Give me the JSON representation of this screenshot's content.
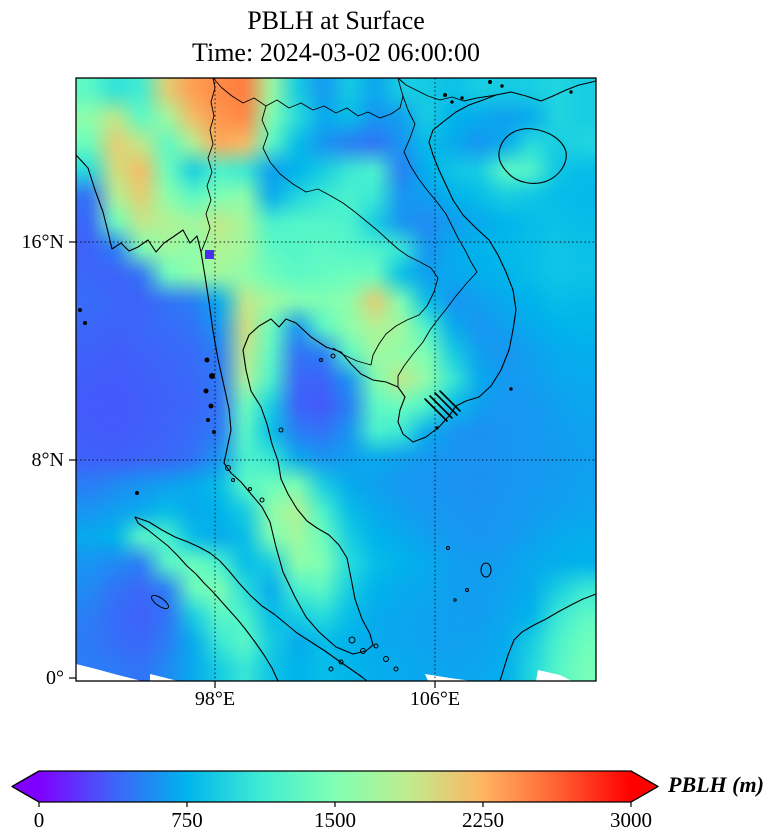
{
  "title": {
    "line1": "PBLH at Surface",
    "line2": "Time: 2024-03-02 06:00:00"
  },
  "axes": {
    "y_ticks": [
      "16°N",
      "8°N",
      "0°"
    ],
    "x_ticks": [
      "98°E",
      "106°E"
    ]
  },
  "colorbar": {
    "label": "PBLH (m)",
    "ticks": [
      "0",
      "750",
      "1500",
      "2250",
      "3000"
    ],
    "min": 0,
    "max": 3000,
    "extend": "both",
    "gradient_stops": [
      "#8000ff",
      "#4062fa",
      "#00b4ec",
      "#40ecd4",
      "#80ffb4",
      "#bfec8e",
      "#ffb462",
      "#ff6232",
      "#ff0000"
    ]
  },
  "chart_data": {
    "type": "heatmap",
    "title": "PBLH at Surface",
    "subtitle": "Time: 2024-03-02 06:00:00",
    "variable": "PBLH",
    "units": "m",
    "colormap": "rainbow",
    "value_range": [
      0,
      3000
    ],
    "lon_range": [
      93,
      112
    ],
    "lat_range": [
      22.1,
      0
    ],
    "grid_cols": 20,
    "grid_rows": 23,
    "grid": [
      [
        1300,
        1050,
        1150,
        2100,
        2350,
        2450,
        2500,
        1700,
        900,
        620,
        880,
        680,
        900,
        880,
        820,
        900,
        880,
        900,
        950,
        900
      ],
      [
        1600,
        1900,
        1300,
        1700,
        2200,
        2400,
        2450,
        1500,
        1000,
        700,
        800,
        600,
        650,
        900,
        750,
        700,
        650,
        700,
        950,
        900
      ],
      [
        1400,
        2100,
        1900,
        1300,
        1800,
        2300,
        2200,
        1300,
        800,
        600,
        500,
        450,
        600,
        800,
        700,
        600,
        700,
        1000,
        900,
        950
      ],
      [
        1000,
        2000,
        2200,
        1400,
        900,
        1200,
        1100,
        650,
        750,
        900,
        1100,
        1200,
        500,
        750,
        850,
        900,
        1300,
        1250,
        850,
        800
      ],
      [
        450,
        1800,
        2100,
        1600,
        1300,
        1500,
        1600,
        700,
        950,
        1100,
        1200,
        1100,
        600,
        650,
        750,
        800,
        900,
        850,
        800,
        780
      ],
      [
        400,
        1400,
        1900,
        1800,
        1700,
        1900,
        1700,
        1200,
        1250,
        1250,
        1200,
        900,
        600,
        550,
        650,
        700,
        750,
        800,
        820,
        800
      ],
      [
        380,
        500,
        1500,
        1700,
        1600,
        1800,
        1700,
        1300,
        1250,
        1300,
        1250,
        1200,
        1100,
        600,
        700,
        750,
        780,
        800,
        850,
        820
      ],
      [
        400,
        380,
        450,
        1400,
        1600,
        1700,
        1600,
        1400,
        1300,
        1350,
        1400,
        1400,
        800,
        650,
        700,
        720,
        760,
        800,
        850,
        830
      ],
      [
        420,
        400,
        380,
        450,
        500,
        700,
        1900,
        1700,
        1550,
        1500,
        1600,
        2100,
        1500,
        800,
        600,
        650,
        700,
        750,
        800,
        780
      ],
      [
        400,
        380,
        400,
        420,
        450,
        600,
        2000,
        1400,
        600,
        1300,
        1600,
        1800,
        1700,
        1200,
        700,
        600,
        650,
        700,
        750,
        760
      ],
      [
        380,
        360,
        380,
        400,
        420,
        500,
        1900,
        1300,
        450,
        500,
        1300,
        1700,
        1600,
        1500,
        900,
        650,
        600,
        650,
        700,
        720
      ],
      [
        360,
        350,
        370,
        390,
        410,
        480,
        1800,
        1200,
        400,
        380,
        600,
        1500,
        1900,
        1600,
        1100,
        700,
        620,
        640,
        680,
        700
      ],
      [
        350,
        340,
        360,
        380,
        400,
        450,
        1400,
        900,
        380,
        350,
        500,
        1300,
        1400,
        1200,
        800,
        650,
        600,
        620,
        650,
        680
      ],
      [
        360,
        350,
        370,
        390,
        420,
        480,
        1300,
        800,
        500,
        450,
        600,
        1200,
        1100,
        700,
        600,
        580,
        600,
        620,
        640,
        660
      ],
      [
        380,
        370,
        390,
        400,
        450,
        600,
        1200,
        1100,
        700,
        600,
        650,
        700,
        650,
        620,
        600,
        590,
        600,
        610,
        630,
        650
      ],
      [
        500,
        550,
        600,
        650,
        700,
        800,
        1300,
        1400,
        1500,
        900,
        700,
        650,
        620,
        600,
        590,
        580,
        600,
        620,
        640,
        660
      ],
      [
        600,
        650,
        700,
        800,
        700,
        750,
        900,
        1600,
        1800,
        1200,
        800,
        700,
        650,
        620,
        600,
        590,
        610,
        630,
        650,
        670
      ],
      [
        700,
        750,
        1300,
        1200,
        800,
        700,
        800,
        1500,
        1700,
        1400,
        900,
        750,
        700,
        650,
        620,
        600,
        620,
        650,
        700,
        720
      ],
      [
        600,
        550,
        500,
        1300,
        1400,
        1200,
        800,
        900,
        1600,
        1500,
        1000,
        800,
        750,
        700,
        650,
        630,
        650,
        700,
        720,
        740
      ],
      [
        550,
        450,
        400,
        500,
        1400,
        1500,
        1000,
        700,
        1200,
        1300,
        900,
        750,
        700,
        680,
        650,
        640,
        660,
        700,
        900,
        1100
      ],
      [
        500,
        420,
        380,
        450,
        900,
        1300,
        1200,
        800,
        900,
        1000,
        800,
        700,
        680,
        660,
        650,
        640,
        680,
        750,
        1100,
        1300
      ],
      [
        480,
        430,
        400,
        500,
        700,
        1100,
        1300,
        900,
        700,
        800,
        750,
        700,
        680,
        660,
        650,
        660,
        700,
        900,
        1200,
        1400
      ],
      [
        500,
        480,
        450,
        550,
        700,
        900,
        1100,
        850,
        750,
        800,
        760,
        720,
        700,
        680,
        670,
        680,
        720,
        950,
        1250,
        1450
      ]
    ]
  }
}
